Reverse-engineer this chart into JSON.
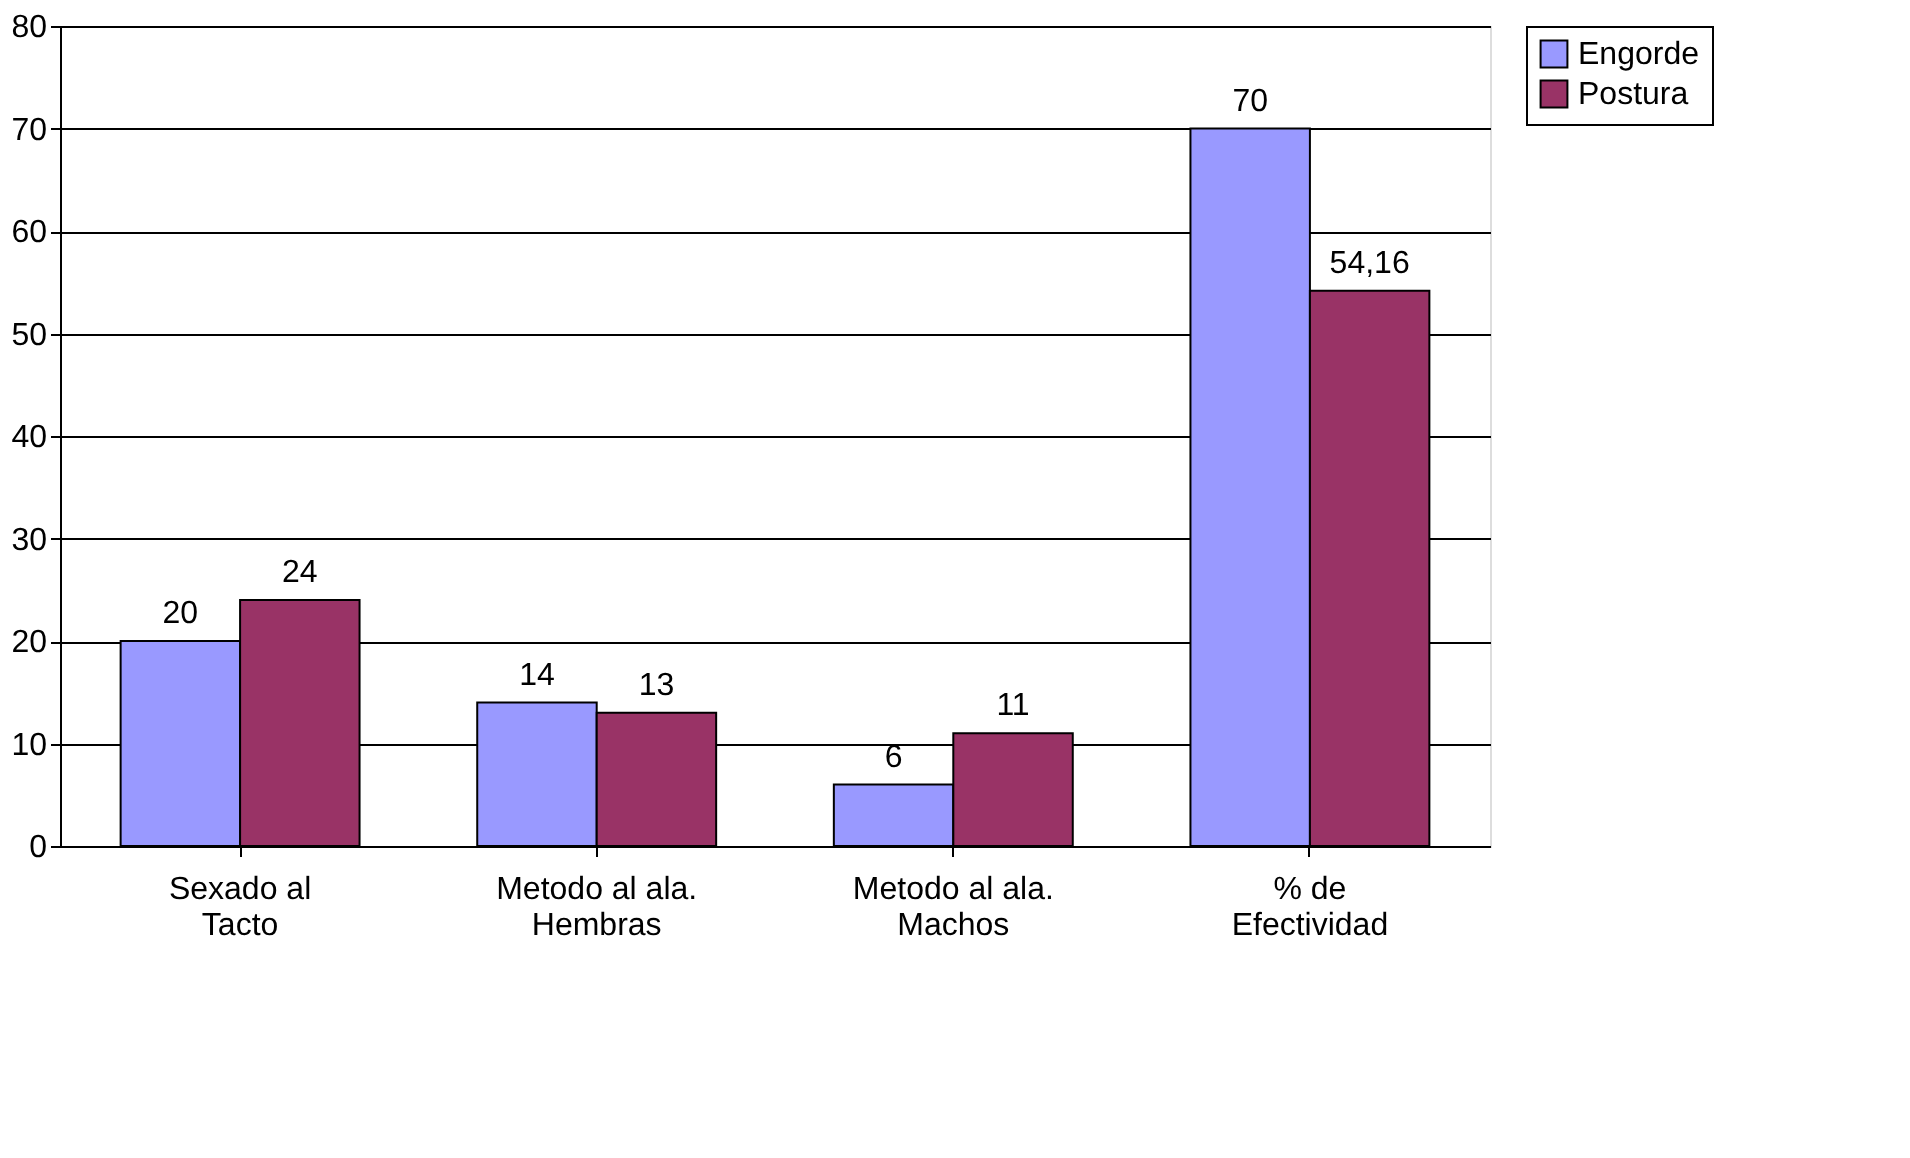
{
  "chart_data": {
    "type": "bar",
    "categories": [
      "Sexado al\nTacto",
      "Metodo al ala.\nHembras",
      "Metodo al ala.\nMachos",
      "% de\nEfectividad"
    ],
    "series": [
      {
        "name": "Engorde",
        "color": "#9999ff",
        "values": [
          20,
          14,
          6,
          70
        ],
        "value_labels": [
          "20",
          "14",
          "6",
          "70"
        ]
      },
      {
        "name": "Postura",
        "color": "#993366",
        "values": [
          24,
          13,
          11,
          54.16
        ],
        "value_labels": [
          "24",
          "13",
          "11",
          "54,16"
        ]
      }
    ],
    "ylim": [
      0,
      80
    ],
    "yticks": [
      0,
      10,
      20,
      30,
      40,
      50,
      60,
      70,
      80
    ],
    "grid": "y",
    "legend": "right"
  }
}
